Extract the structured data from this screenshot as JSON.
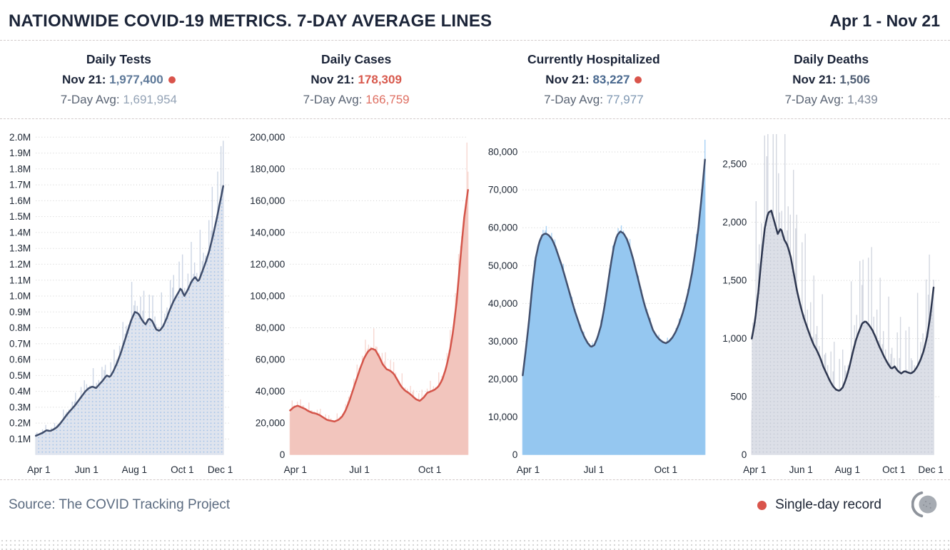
{
  "header": {
    "title": "NATIONWIDE COVID-19 METRICS. 7-DAY AVERAGE LINES",
    "date_range": "Apr 1 - Nov 21"
  },
  "colors": {
    "record": "#d9544b"
  },
  "footer": {
    "source": "Source: The COVID Tracking Project",
    "legend_label": "Single-day record"
  },
  "charts": [
    {
      "title": "Daily Tests",
      "latest_label": "Nov 21:",
      "latest_value": "1,977,400",
      "is_record": true,
      "avg_label": "7-Day Avg:",
      "avg_value": "1,691,954",
      "colors": {
        "value": "#5d7898",
        "avg_value": "#93a2b5"
      }
    },
    {
      "title": "Daily Cases",
      "latest_label": "Nov 21:",
      "latest_value": "178,309",
      "is_record": false,
      "avg_label": "7-Day Avg:",
      "avg_value": "166,759",
      "colors": {
        "value": "#d8584c",
        "avg_value": "#df6f62"
      }
    },
    {
      "title": "Currently Hospitalized",
      "latest_label": "Nov 21:",
      "latest_value": "83,227",
      "is_record": true,
      "avg_label": "7-Day Avg:",
      "avg_value": "77,977",
      "colors": {
        "value": "#49688e",
        "avg_value": "#7e97b2"
      }
    },
    {
      "title": "Daily Deaths",
      "latest_label": "Nov 21:",
      "latest_value": "1,506",
      "is_record": false,
      "avg_label": "7-Day Avg:",
      "avg_value": "1,439",
      "colors": {
        "value": "#4f5e74",
        "avg_value": "#7d8798"
      }
    }
  ],
  "chart_data": [
    {
      "id": "daily-tests",
      "type": "area",
      "title": "Daily Tests",
      "series_name": "7-day average tests",
      "x_range": "Apr 1 - Nov 21",
      "ylim": [
        0,
        2050000
      ],
      "data_span": 0.96,
      "bar_noise": 0.3,
      "latest": 1977400,
      "x_ticks": [
        {
          "label": "Apr 1",
          "pos": 0.015
        },
        {
          "label": "Jun 1",
          "pos": 0.26
        },
        {
          "label": "Aug 1",
          "pos": 0.505
        },
        {
          "label": "Oct 1",
          "pos": 0.75
        },
        {
          "label": "Dec 1",
          "pos": 0.945
        }
      ],
      "y_ticks": [
        {
          "v": 100000,
          "label": "0.1M"
        },
        {
          "v": 200000,
          "label": "0.2M"
        },
        {
          "v": 300000,
          "label": "0.3M"
        },
        {
          "v": 400000,
          "label": "0.4M"
        },
        {
          "v": 500000,
          "label": "0.5M"
        },
        {
          "v": 600000,
          "label": "0.6M"
        },
        {
          "v": 700000,
          "label": "0.7M"
        },
        {
          "v": 800000,
          "label": "0.8M"
        },
        {
          "v": 900000,
          "label": "0.9M"
        },
        {
          "v": 1000000,
          "label": "1.0M"
        },
        {
          "v": 1100000,
          "label": "1.1M"
        },
        {
          "v": 1200000,
          "label": "1.2M"
        },
        {
          "v": 1300000,
          "label": "1.3M"
        },
        {
          "v": 1400000,
          "label": "1.4M"
        },
        {
          "v": 1500000,
          "label": "1.5M"
        },
        {
          "v": 1600000,
          "label": "1.6M"
        },
        {
          "v": 1700000,
          "label": "1.7M"
        },
        {
          "v": 1800000,
          "label": "1.8M"
        },
        {
          "v": 1900000,
          "label": "1.9M"
        },
        {
          "v": 2000000,
          "label": "2.0M"
        }
      ],
      "avg_values": [
        120000,
        130000,
        140000,
        155000,
        150000,
        160000,
        175000,
        200000,
        230000,
        260000,
        285000,
        310000,
        340000,
        370000,
        400000,
        420000,
        430000,
        420000,
        445000,
        470000,
        500000,
        490000,
        530000,
        580000,
        640000,
        710000,
        780000,
        850000,
        900000,
        890000,
        850000,
        820000,
        860000,
        840000,
        790000,
        780000,
        810000,
        860000,
        920000,
        970000,
        1010000,
        1050000,
        1000000,
        1040000,
        1090000,
        1120000,
        1090000,
        1150000,
        1210000,
        1280000,
        1370000,
        1470000,
        1580000,
        1691954
      ],
      "colors": {
        "line": "#3f4d6b",
        "area": "#dfe4ee",
        "bars": "#ccd5e4",
        "pattern_dot": "#a3c2e8"
      }
    },
    {
      "id": "daily-cases",
      "type": "area",
      "title": "Daily Cases",
      "series_name": "7-day average cases",
      "x_range": "Apr 1 - Nov 21",
      "ylim": [
        0,
        205000
      ],
      "data_span": 1.0,
      "bar_noise": 0.22,
      "latest": 178309,
      "x_ticks": [
        {
          "label": "Apr 1",
          "pos": 0.03
        },
        {
          "label": "Jul 1",
          "pos": 0.39
        },
        {
          "label": "Oct 1",
          "pos": 0.785
        }
      ],
      "y_ticks": [
        {
          "v": 0,
          "label": "0"
        },
        {
          "v": 20000,
          "label": "20,000"
        },
        {
          "v": 40000,
          "label": "40,000"
        },
        {
          "v": 60000,
          "label": "60,000"
        },
        {
          "v": 80000,
          "label": "80,000"
        },
        {
          "v": 100000,
          "label": "100,000"
        },
        {
          "v": 120000,
          "label": "120,000"
        },
        {
          "v": 140000,
          "label": "140,000"
        },
        {
          "v": 160000,
          "label": "160,000"
        },
        {
          "v": 180000,
          "label": "180,000"
        },
        {
          "v": 200000,
          "label": "200,000"
        }
      ],
      "avg_values": [
        28000,
        30000,
        31000,
        30000,
        29000,
        27500,
        26500,
        26000,
        25000,
        23500,
        22000,
        21500,
        21000,
        22000,
        24000,
        28000,
        34000,
        41000,
        48000,
        55000,
        61000,
        65000,
        67000,
        66000,
        62000,
        57000,
        54000,
        53000,
        51000,
        47000,
        43000,
        40500,
        39000,
        37000,
        35000,
        34000,
        36000,
        39000,
        40000,
        41000,
        43000,
        47000,
        54000,
        64000,
        78000,
        98000,
        125000,
        150000,
        166759
      ],
      "colors": {
        "line": "#d4554a",
        "area": "#f2c5bd",
        "bars": "#f7d8d2"
      }
    },
    {
      "id": "currently-hospitalized",
      "type": "area",
      "title": "Currently Hospitalized",
      "series_name": "7-day average hospitalized",
      "x_range": "Apr 1 - Nov 21",
      "ylim": [
        0,
        86000
      ],
      "data_span": 1.0,
      "bar_noise": 0.045,
      "latest": 83227,
      "x_ticks": [
        {
          "label": "Apr 1",
          "pos": 0.03
        },
        {
          "label": "Jul 1",
          "pos": 0.39
        },
        {
          "label": "Oct 1",
          "pos": 0.785
        }
      ],
      "y_ticks": [
        {
          "v": 0,
          "label": "0"
        },
        {
          "v": 10000,
          "label": "10,000"
        },
        {
          "v": 20000,
          "label": "20,000"
        },
        {
          "v": 30000,
          "label": "30,000"
        },
        {
          "v": 40000,
          "label": "40,000"
        },
        {
          "v": 50000,
          "label": "50,000"
        },
        {
          "v": 60000,
          "label": "60,000"
        },
        {
          "v": 70000,
          "label": "70,000"
        },
        {
          "v": 80000,
          "label": "80,000"
        }
      ],
      "avg_values": [
        21000,
        28000,
        36000,
        45000,
        52000,
        56000,
        58000,
        58500,
        58000,
        57000,
        55000,
        52500,
        50000,
        47000,
        44000,
        41000,
        38000,
        35500,
        33000,
        31000,
        29500,
        28500,
        29000,
        31000,
        34000,
        38500,
        44000,
        50000,
        55000,
        58000,
        59000,
        58500,
        57000,
        54500,
        51500,
        48000,
        44500,
        41000,
        38000,
        35500,
        33000,
        31500,
        30500,
        29800,
        29500,
        30000,
        31000,
        32500,
        34500,
        37000,
        40000,
        43500,
        48000,
        53500,
        60000,
        68500,
        77977
      ],
      "colors": {
        "line": "#42506e",
        "area": "#95c7f0",
        "bars": "#a8d2f5"
      }
    },
    {
      "id": "daily-deaths",
      "type": "area",
      "title": "Daily Deaths",
      "series_name": "7-day average deaths",
      "x_range": "Apr 1 - Nov 21",
      "ylim": [
        0,
        2800
      ],
      "data_span": 0.96,
      "bar_noise": 0.85,
      "latest": 1506,
      "x_ticks": [
        {
          "label": "Apr 1",
          "pos": 0.015
        },
        {
          "label": "Jun 1",
          "pos": 0.26
        },
        {
          "label": "Aug 1",
          "pos": 0.505
        },
        {
          "label": "Oct 1",
          "pos": 0.75
        },
        {
          "label": "Dec 1",
          "pos": 0.945
        }
      ],
      "y_ticks": [
        {
          "v": 0,
          "label": "0"
        },
        {
          "v": 500,
          "label": "500"
        },
        {
          "v": 1000,
          "label": "1,000"
        },
        {
          "v": 1500,
          "label": "1,500"
        },
        {
          "v": 2000,
          "label": "2,000"
        },
        {
          "v": 2500,
          "label": "2,500"
        }
      ],
      "avg_values": [
        1000,
        1150,
        1400,
        1700,
        1950,
        2080,
        2100,
        2000,
        1900,
        1950,
        1850,
        1800,
        1700,
        1550,
        1400,
        1280,
        1180,
        1100,
        1020,
        950,
        900,
        840,
        760,
        700,
        640,
        590,
        560,
        550,
        580,
        650,
        750,
        870,
        980,
        1060,
        1130,
        1150,
        1120,
        1080,
        1020,
        950,
        890,
        830,
        780,
        740,
        760,
        720,
        700,
        720,
        710,
        700,
        720,
        760,
        820,
        900,
        1020,
        1200,
        1439
      ],
      "colors": {
        "line": "#2e3750",
        "area": "#dcdfe7",
        "bars": "#d3d7e0",
        "pattern_dot": "#c6cbd6"
      }
    }
  ]
}
